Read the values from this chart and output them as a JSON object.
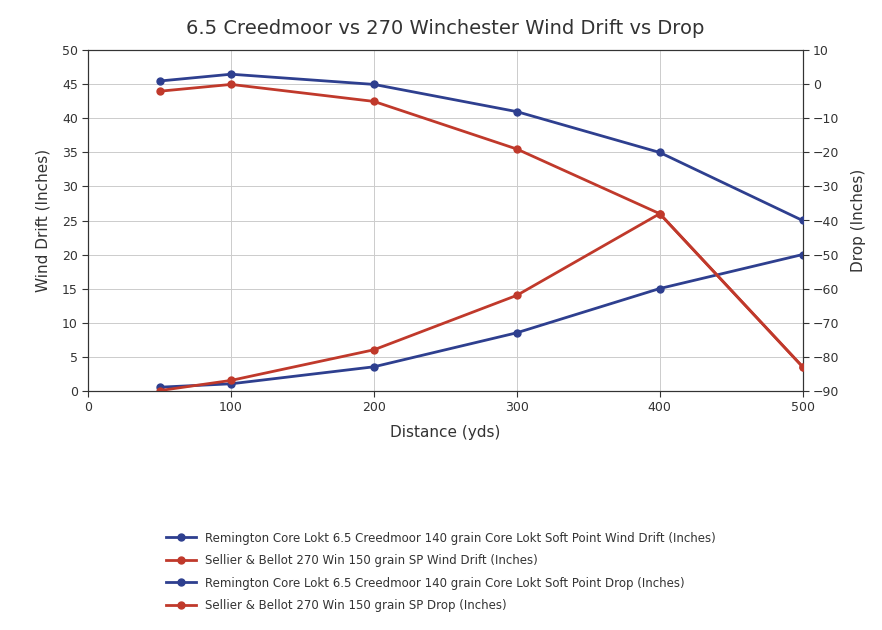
{
  "title": "6.5 Creedmoor vs 270 Winchester Wind Drift vs Drop",
  "xlabel": "Distance (yds)",
  "ylabel_left": "Wind Drift (Inches)",
  "ylabel_right": "Drop (Inches)",
  "x": [
    50,
    100,
    200,
    300,
    400,
    500
  ],
  "creedmoor_wind_drift": [
    0.5,
    1.0,
    3.5,
    8.5,
    15.0,
    20.0
  ],
  "sellier_wind_drift": [
    0.0,
    1.5,
    6.0,
    14.0,
    26.0,
    3.5
  ],
  "creedmoor_drop": [
    1.0,
    3.0,
    0.0,
    -8.0,
    -20.0,
    -40.0
  ],
  "sellier_drop": [
    -2.0,
    0.0,
    -5.0,
    -19.0,
    -38.0,
    -83.0
  ],
  "color_blue": "#2e3f8f",
  "color_red": "#c0392b",
  "ylim_left": [
    0,
    50
  ],
  "ylim_right": [
    -90,
    10
  ],
  "yticks_left": [
    0,
    5,
    10,
    15,
    20,
    25,
    30,
    35,
    40,
    45,
    50
  ],
  "yticks_right": [
    -90,
    -80,
    -70,
    -60,
    -50,
    -40,
    -30,
    -20,
    -10,
    0,
    10
  ],
  "xticks": [
    0,
    100,
    200,
    300,
    400,
    500
  ],
  "legend_labels": [
    "Remington Core Lokt 6.5 Creedmoor 140 grain Core Lokt Soft Point Wind Drift (Inches)",
    "Sellier & Bellot 270 Win 150 grain SP Wind Drift (Inches)",
    "Remington Core Lokt 6.5 Creedmoor 140 grain Core Lokt Soft Point Drop (Inches)",
    "Sellier & Bellot 270 Win 150 grain SP Drop (Inches)"
  ],
  "background_color": "#ffffff",
  "plot_bg_color": "#ffffff",
  "text_color": "#333333",
  "grid_color": "#cccccc",
  "title_fontsize": 14,
  "axis_label_fontsize": 11,
  "tick_fontsize": 9,
  "legend_fontsize": 8.5
}
